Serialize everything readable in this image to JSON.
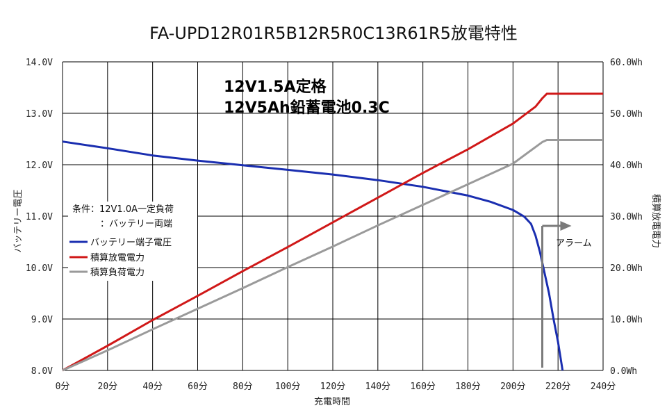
{
  "chart_data": {
    "type": "line",
    "title": "FA-UPD12R01R5B12R5R0C13R61R5放電特性",
    "annotations": {
      "spec_line1": "12V1.5A定格",
      "spec_line2": "12V5Ah鉛蓄電池0.3C",
      "condition_line1": "条件：12V1.0A一定負荷",
      "condition_line2": "：バッテリー両端",
      "alarm_label": "アラーム",
      "alarm_x": 213
    },
    "xlabel": "充電時間",
    "ylabel_left": "バッテリー電圧",
    "ylabel_right": "積算放電電力",
    "xlim": [
      0,
      240
    ],
    "ylim_left": [
      8.0,
      14.0
    ],
    "ylim_right": [
      0.0,
      60.0
    ],
    "x_ticks": [
      "0分",
      "20分",
      "40分",
      "60分",
      "80分",
      "100分",
      "120分",
      "140分",
      "160分",
      "180分",
      "200分",
      "220分",
      "240分"
    ],
    "y_left_ticks": [
      "8.0V",
      "9.0V",
      "10.0V",
      "11.0V",
      "12.0V",
      "13.0V",
      "14.0V"
    ],
    "y_right_ticks": [
      "0.0Wh",
      "10.0Wh",
      "20.0Wh",
      "30.0Wh",
      "40.0Wh",
      "50.0Wh",
      "60.0Wh"
    ],
    "grid": true,
    "legend_position": "left",
    "colors": {
      "voltage": "#1a2eb0",
      "discharge": "#d01818",
      "load": "#9a9a9a",
      "alarm": "#7a7a7a",
      "grid": "#000000"
    },
    "series": [
      {
        "name": "バッテリー端子電圧",
        "axis": "left",
        "color_key": "voltage",
        "x": [
          0,
          20,
          40,
          60,
          80,
          100,
          120,
          140,
          160,
          180,
          190,
          200,
          205,
          208,
          210,
          212,
          214,
          216,
          218,
          220,
          222
        ],
        "y": [
          12.45,
          12.32,
          12.18,
          12.08,
          11.99,
          11.9,
          11.81,
          11.7,
          11.57,
          11.4,
          11.28,
          11.12,
          10.99,
          10.85,
          10.62,
          10.3,
          9.9,
          9.5,
          9.0,
          8.55,
          8.0
        ]
      },
      {
        "name": "積算放電電力",
        "axis": "right",
        "color_key": "discharge",
        "x": [
          0,
          20,
          40,
          60,
          80,
          100,
          120,
          140,
          160,
          180,
          200,
          210,
          213,
          215,
          240
        ],
        "y": [
          0.0,
          4.8,
          9.8,
          14.5,
          19.3,
          24.0,
          28.8,
          33.6,
          38.4,
          43.0,
          48.0,
          51.3,
          52.9,
          53.8,
          53.8
        ]
      },
      {
        "name": "積算負荷電力",
        "axis": "right",
        "color_key": "load",
        "x": [
          0,
          20,
          40,
          60,
          80,
          100,
          120,
          140,
          160,
          180,
          200,
          213,
          215,
          240
        ],
        "y": [
          0.0,
          3.9,
          8.0,
          12.0,
          16.0,
          20.1,
          24.1,
          28.2,
          32.2,
          36.2,
          40.2,
          44.4,
          44.8,
          44.8
        ]
      }
    ]
  }
}
